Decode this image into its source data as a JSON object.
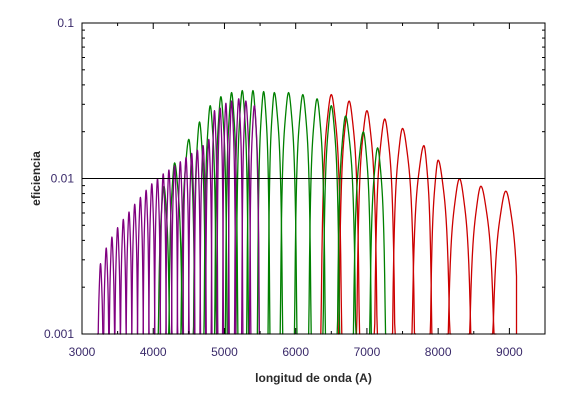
{
  "chart_data": {
    "type": "line",
    "title": "",
    "xlabel": "longitud de onda (A)",
    "ylabel": "eficiencia",
    "xlim": [
      3000,
      9500
    ],
    "ylim": [
      0.001,
      0.1
    ],
    "yscale": "log",
    "x_ticks": [
      3000,
      4000,
      5000,
      6000,
      7000,
      8000,
      9000
    ],
    "x_tick_labels": [
      "3000",
      "4000",
      "5000",
      "6000",
      "7000",
      "8000",
      "9000"
    ],
    "y_ticks": [
      0.001,
      0.01,
      0.1
    ],
    "y_tick_labels": [
      "0.001",
      "0.01",
      "0.1"
    ],
    "grid": false,
    "reference_line": {
      "y": 0.01,
      "color": "#000000"
    },
    "series": [
      {
        "color": "#cc0000",
        "x_range": [
          6300,
          9100
        ],
        "orders": [
          {
            "center": 6500,
            "peak": 0.033
          },
          {
            "center": 6750,
            "peak": 0.03
          },
          {
            "center": 7000,
            "peak": 0.026
          },
          {
            "center": 7250,
            "peak": 0.023
          },
          {
            "center": 7500,
            "peak": 0.02
          },
          {
            "center": 7800,
            "peak": 0.0155
          },
          {
            "center": 8000,
            "peak": 0.0125
          },
          {
            "center": 8300,
            "peak": 0.0095
          },
          {
            "center": 8600,
            "peak": 0.0085
          },
          {
            "center": 8950,
            "peak": 0.0079
          }
        ]
      },
      {
        "color": "#008000",
        "x_range": [
          4050,
          7300
        ],
        "orders": [
          {
            "center": 4150,
            "peak": 0.0085
          },
          {
            "center": 4300,
            "peak": 0.012
          },
          {
            "center": 4500,
            "peak": 0.017
          },
          {
            "center": 4650,
            "peak": 0.022
          },
          {
            "center": 4800,
            "peak": 0.028
          },
          {
            "center": 4950,
            "peak": 0.032
          },
          {
            "center": 5100,
            "peak": 0.034
          },
          {
            "center": 5250,
            "peak": 0.035
          },
          {
            "center": 5400,
            "peak": 0.035
          },
          {
            "center": 5550,
            "peak": 0.0345
          },
          {
            "center": 5700,
            "peak": 0.034
          },
          {
            "center": 5900,
            "peak": 0.034
          },
          {
            "center": 6100,
            "peak": 0.033
          },
          {
            "center": 6300,
            "peak": 0.031
          },
          {
            "center": 6500,
            "peak": 0.028
          },
          {
            "center": 6700,
            "peak": 0.024
          },
          {
            "center": 6950,
            "peak": 0.019
          },
          {
            "center": 7150,
            "peak": 0.015
          }
        ]
      },
      {
        "color": "#800080",
        "x_range": [
          3200,
          5550
        ],
        "orders": [
          {
            "center": 3260,
            "peak": 0.0027
          },
          {
            "center": 3340,
            "peak": 0.0034
          },
          {
            "center": 3420,
            "peak": 0.004
          },
          {
            "center": 3500,
            "peak": 0.0046
          },
          {
            "center": 3580,
            "peak": 0.0052
          },
          {
            "center": 3660,
            "peak": 0.0058
          },
          {
            "center": 3740,
            "peak": 0.0065
          },
          {
            "center": 3820,
            "peak": 0.0072
          },
          {
            "center": 3900,
            "peak": 0.008
          },
          {
            "center": 3980,
            "peak": 0.0088
          },
          {
            "center": 4060,
            "peak": 0.0095
          },
          {
            "center": 4140,
            "peak": 0.0102
          },
          {
            "center": 4220,
            "peak": 0.0108
          },
          {
            "center": 4300,
            "peak": 0.0115
          },
          {
            "center": 4380,
            "peak": 0.0122
          },
          {
            "center": 4460,
            "peak": 0.013
          },
          {
            "center": 4540,
            "peak": 0.0138
          },
          {
            "center": 4620,
            "peak": 0.0145
          },
          {
            "center": 4700,
            "peak": 0.0155
          },
          {
            "center": 4780,
            "peak": 0.017
          },
          {
            "center": 4860,
            "peak": 0.026
          },
          {
            "center": 4940,
            "peak": 0.027
          },
          {
            "center": 5020,
            "peak": 0.029
          },
          {
            "center": 5100,
            "peak": 0.03
          },
          {
            "center": 5200,
            "peak": 0.031
          },
          {
            "center": 5300,
            "peak": 0.03
          },
          {
            "center": 5420,
            "peak": 0.028
          }
        ]
      }
    ]
  }
}
